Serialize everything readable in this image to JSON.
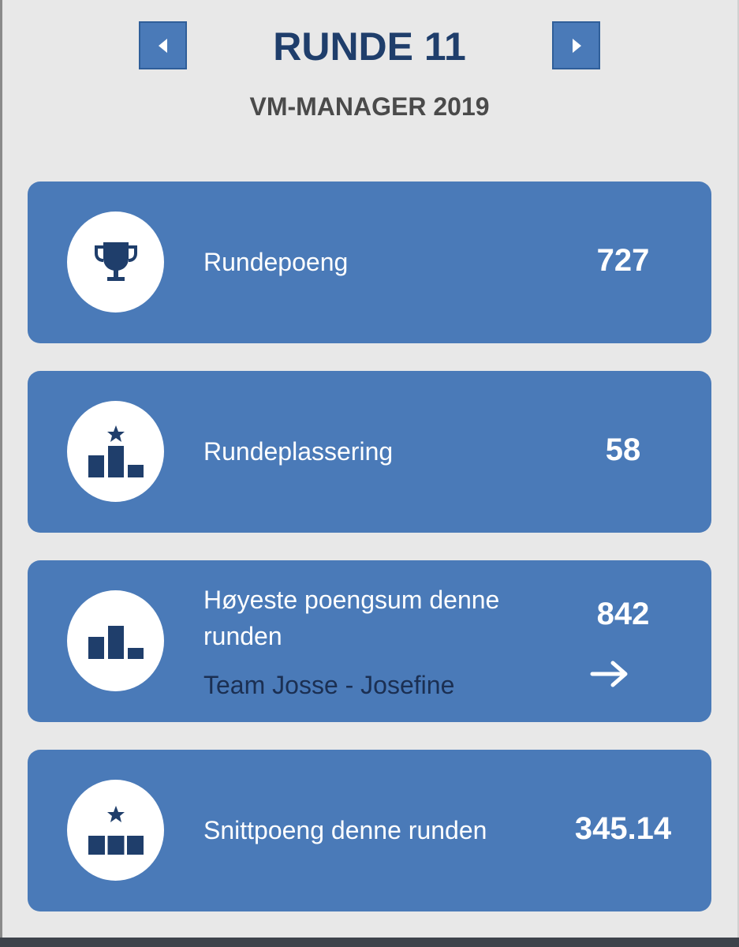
{
  "header": {
    "round_title": "RUNDE 11",
    "subtitle": "VM-MANAGER 2019",
    "prev_icon": "chevron-left-icon",
    "next_icon": "chevron-right-icon"
  },
  "cards": [
    {
      "label": "Rundepoeng",
      "value": "727",
      "icon": "trophy-icon"
    },
    {
      "label": "Rundeplassering",
      "value": "58",
      "icon": "podium-star-icon"
    },
    {
      "label": "Høyeste poengsum denne runden",
      "label_line1": "Høyeste poengsum denne",
      "label_line2": "runden",
      "sub_label": "Team Josse - Josefine",
      "value": "842",
      "icon": "podium-icon",
      "link_icon": "arrow-right-icon"
    },
    {
      "label": "Snittpoeng denne runden",
      "value": "345.14",
      "icon": "average-star-icon"
    }
  ],
  "colors": {
    "background": "#e8e8e8",
    "card": "#4a7ab8",
    "navy": "#1f3e6b",
    "icon": "#1f3e6b"
  }
}
